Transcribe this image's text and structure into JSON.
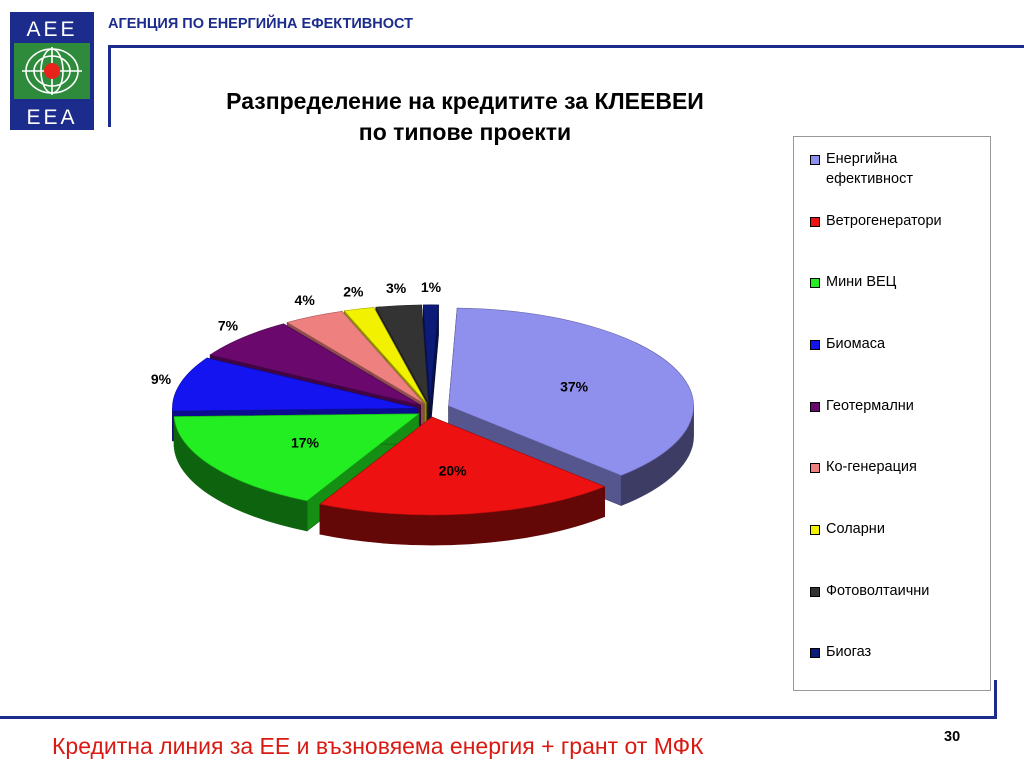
{
  "header": {
    "logo_text_top": "AEE",
    "logo_text_bottom": "EEA",
    "agency_name": "АГЕНЦИЯ ПО ЕНЕРГИЙНА ЕФЕКТИВНОСТ"
  },
  "colors": {
    "brand_blue": "#1c2c8c",
    "logo_green": "#2e8b3c",
    "footer_red": "#d91a13"
  },
  "chart_data": {
    "type": "pie",
    "title": [
      "Разпределение на кредитите за КЛЕЕВЕИ",
      "по типове проекти"
    ],
    "legend_position": "right",
    "slices": [
      {
        "label": "Енергийна ефективност",
        "value": 37,
        "value_label": "37%",
        "color": "#8f8fee"
      },
      {
        "label": "Ветрогенератори",
        "value": 20,
        "value_label": "20%",
        "color": "#ee1111"
      },
      {
        "label": "Мини ВЕЦ",
        "value": 17,
        "value_label": "17%",
        "color": "#22ee22"
      },
      {
        "label": "Биомаса",
        "value": 9,
        "value_label": "9%",
        "color": "#1414f0"
      },
      {
        "label": "Геотермални",
        "value": 7,
        "value_label": "7%",
        "color": "#6a086e"
      },
      {
        "label": "Ко-генерация",
        "value": 4,
        "value_label": "4%",
        "color": "#ee8080"
      },
      {
        "label": "Соларни",
        "value": 2,
        "value_label": "2%",
        "color": "#f2f200"
      },
      {
        "label": "Фотоволтаични",
        "value": 3,
        "value_label": "3%",
        "color": "#333333"
      },
      {
        "label": "Биогаз",
        "value": 1,
        "value_label": "1%",
        "color": "#0c1a78"
      }
    ]
  },
  "footer": {
    "text": "Кредитна линия за ЕЕ и възновяема енергия + грант от МФК",
    "page_number": "30"
  }
}
